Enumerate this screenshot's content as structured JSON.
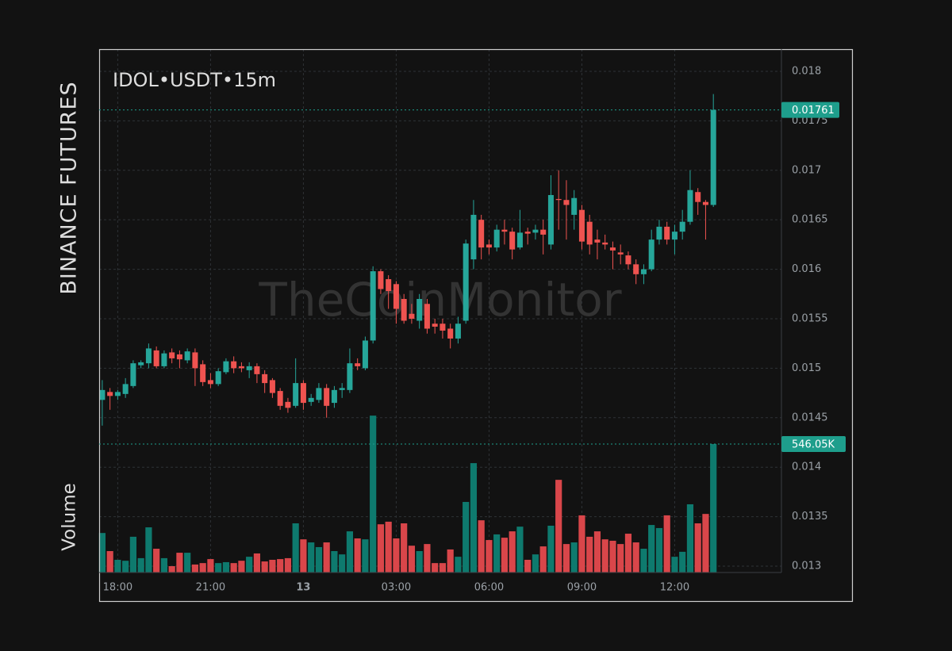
{
  "chart_data": {
    "type": "candlestick",
    "title": "IDOL•USDT•15m",
    "exchange_label": "BINANCE FUTURES",
    "volume_label_text": "Volume",
    "watermark": "TheCoinMonitor",
    "up_color": "#26a69a",
    "down_color": "#ef5350",
    "volume_up_color": "#0e7a6e",
    "volume_down_color": "#d9464a",
    "highlight_color": "#1e9e8c",
    "grid": true,
    "xlim": [
      -0.4,
      87.8
    ],
    "xticks": [
      {
        "value": 2,
        "label": "18:00"
      },
      {
        "value": 14,
        "label": "21:00"
      },
      {
        "value": 26,
        "label": "13"
      },
      {
        "value": 38,
        "label": "03:00"
      },
      {
        "value": 50,
        "label": "06:00"
      },
      {
        "value": 62,
        "label": "09:00"
      },
      {
        "value": 74,
        "label": "12:00"
      }
    ],
    "ylim": [
      0.012936,
      0.018224
    ],
    "yticks": [
      0.013,
      0.0135,
      0.014,
      0.0145,
      0.015,
      0.0155,
      0.016,
      0.0165,
      0.017,
      0.0175,
      0.018
    ],
    "y2lim": [
      0,
      2225
    ],
    "price_label": {
      "value": 0.01761,
      "label": "0.01761"
    },
    "volume_label": {
      "value": 546.05,
      "label": "546.05K"
    },
    "open": [
      0.01468,
      0.01476,
      0.01472,
      0.01474,
      0.01482,
      0.01503,
      0.01505,
      0.01518,
      0.01502,
      0.01516,
      0.01514,
      0.01508,
      0.01516,
      0.01504,
      0.01488,
      0.01484,
      0.01496,
      0.01507,
      0.01502,
      0.01498,
      0.01502,
      0.01494,
      0.01488,
      0.01477,
      0.01466,
      0.01462,
      0.01485,
      0.01466,
      0.01468,
      0.0148,
      0.01465,
      0.01478,
      0.01478,
      0.01505,
      0.015,
      0.01528,
      0.01598,
      0.0159,
      0.01585,
      0.0157,
      0.01555,
      0.01548,
      0.01565,
      0.01545,
      0.01545,
      0.0154,
      0.0153,
      0.01548,
      0.0161,
      0.0165,
      0.01625,
      0.01622,
      0.0164,
      0.01638,
      0.01622,
      0.01638,
      0.01637,
      0.0164,
      0.01625,
      0.01671,
      0.0167,
      0.01655,
      0.0166,
      0.01648,
      0.0163,
      0.01627,
      0.01622,
      0.01617,
      0.01614,
      0.01605,
      0.01595,
      0.016,
      0.0163,
      0.01643,
      0.0163,
      0.01638,
      0.01648,
      0.01678,
      0.01668,
      0.01665
    ],
    "high": [
      0.01488,
      0.0148,
      0.01478,
      0.0149,
      0.01508,
      0.01508,
      0.01525,
      0.01522,
      0.01518,
      0.0152,
      0.01518,
      0.0152,
      0.0152,
      0.01508,
      0.01495,
      0.015,
      0.0151,
      0.01512,
      0.01506,
      0.01506,
      0.01505,
      0.01498,
      0.0149,
      0.0148,
      0.0147,
      0.0151,
      0.01488,
      0.01474,
      0.01485,
      0.01484,
      0.01482,
      0.01485,
      0.0152,
      0.0151,
      0.01532,
      0.01603,
      0.016,
      0.01594,
      0.01588,
      0.01575,
      0.01565,
      0.01575,
      0.0157,
      0.0155,
      0.0155,
      0.01545,
      0.01552,
      0.0163,
      0.0167,
      0.01655,
      0.0163,
      0.01645,
      0.0165,
      0.01642,
      0.0166,
      0.01642,
      0.01645,
      0.0165,
      0.01695,
      0.017,
      0.0169,
      0.0168,
      0.01665,
      0.01655,
      0.0164,
      0.01635,
      0.01628,
      0.01625,
      0.01618,
      0.0161,
      0.01605,
      0.0164,
      0.0165,
      0.01648,
      0.01645,
      0.0166,
      0.017,
      0.01682,
      0.0167,
      0.01777
    ],
    "low": [
      0.01442,
      0.01458,
      0.01468,
      0.0147,
      0.0148,
      0.015,
      0.015,
      0.015,
      0.015,
      0.01505,
      0.015,
      0.01505,
      0.01482,
      0.01482,
      0.0148,
      0.01482,
      0.01494,
      0.01495,
      0.01496,
      0.0149,
      0.01485,
      0.01475,
      0.0147,
      0.01458,
      0.01455,
      0.0146,
      0.01458,
      0.01462,
      0.01465,
      0.0145,
      0.0146,
      0.0147,
      0.01475,
      0.01498,
      0.01498,
      0.01525,
      0.01575,
      0.0156,
      0.01545,
      0.01545,
      0.01545,
      0.0154,
      0.01535,
      0.01535,
      0.0153,
      0.0152,
      0.01525,
      0.01545,
      0.016,
      0.0161,
      0.01615,
      0.01618,
      0.01625,
      0.0161,
      0.0162,
      0.01625,
      0.0163,
      0.01615,
      0.0162,
      0.0164,
      0.0163,
      0.0164,
      0.0162,
      0.01615,
      0.0161,
      0.0162,
      0.016,
      0.01605,
      0.016,
      0.01585,
      0.01585,
      0.01598,
      0.01625,
      0.01625,
      0.01615,
      0.0163,
      0.01645,
      0.01655,
      0.0163,
      0.01663
    ],
    "close": [
      0.01478,
      0.01472,
      0.01476,
      0.01484,
      0.01505,
      0.01506,
      0.0152,
      0.01502,
      0.01515,
      0.0151,
      0.01509,
      0.01517,
      0.015,
      0.01486,
      0.01484,
      0.01497,
      0.01507,
      0.015,
      0.015,
      0.01502,
      0.01494,
      0.01485,
      0.01475,
      0.01462,
      0.0146,
      0.01485,
      0.01465,
      0.0147,
      0.0148,
      0.01462,
      0.01478,
      0.0148,
      0.01505,
      0.01502,
      0.01528,
      0.01598,
      0.0158,
      0.01578,
      0.0156,
      0.01548,
      0.0155,
      0.0157,
      0.0154,
      0.01542,
      0.01538,
      0.0153,
      0.01545,
      0.01626,
      0.01655,
      0.01622,
      0.01622,
      0.0164,
      0.01638,
      0.0162,
      0.01637,
      0.01636,
      0.0164,
      0.01635,
      0.01675,
      0.0167,
      0.01665,
      0.01672,
      0.01628,
      0.01625,
      0.01627,
      0.01625,
      0.01619,
      0.01615,
      0.01605,
      0.01595,
      0.016,
      0.0163,
      0.01643,
      0.0163,
      0.01638,
      0.01648,
      0.0168,
      0.01668,
      0.01665,
      0.01761
    ],
    "volume": [
      168,
      91,
      54,
      50,
      152,
      61,
      192,
      101,
      61,
      27,
      84,
      84,
      34,
      40,
      57,
      40,
      44,
      40,
      50,
      67,
      81,
      47,
      54,
      57,
      61,
      209,
      141,
      128,
      108,
      128,
      91,
      77,
      175,
      145,
      141,
      667,
      205,
      216,
      145,
      209,
      114,
      91,
      121,
      40,
      40,
      98,
      67,
      300,
      465,
      222,
      138,
      162,
      148,
      175,
      195,
      54,
      77,
      111,
      199,
      394,
      121,
      128,
      243,
      152,
      175,
      141,
      135,
      121,
      165,
      128,
      101,
      202,
      189,
      243,
      67,
      88,
      290,
      209,
      249,
      546.05
    ]
  }
}
